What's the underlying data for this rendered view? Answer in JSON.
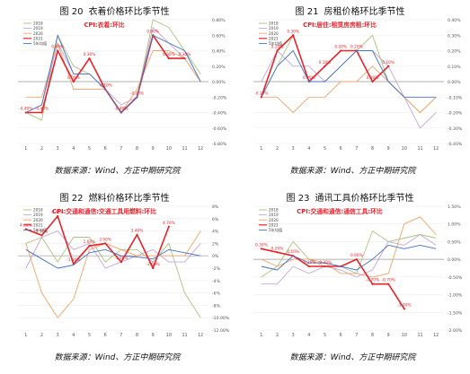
{
  "figures": [
    {
      "num": "图 20",
      "title": "衣着价格环比季节性",
      "subtitle": "CPI:衣着:环比",
      "source": "数据来源：Wind、方正中期研究院",
      "chart_data": {
        "type": "line",
        "x": [
          1,
          2,
          3,
          4,
          5,
          6,
          7,
          8,
          9,
          10,
          11,
          12
        ],
        "ylim": [
          -0.8,
          0.8
        ],
        "yticks": [
          "0.80%",
          "0.60%",
          "0.40%",
          "0.20%",
          "0.00%",
          "-0.20%",
          "-0.40%",
          "-0.60%",
          "-0.80%"
        ],
        "series": [
          {
            "name": "2018",
            "color": "#a9c47f",
            "width": 0.9,
            "values": [
              -0.4,
              -0.5,
              0.6,
              0.2,
              0.1,
              -0.1,
              -0.4,
              -0.2,
              0.8,
              0.7,
              0.4,
              0.1
            ]
          },
          {
            "name": "2019",
            "color": "#c6a5d9",
            "width": 0.9,
            "values": [
              -0.4,
              -0.3,
              0.5,
              0.1,
              0.1,
              -0.1,
              -0.3,
              -0.2,
              0.7,
              0.5,
              0.3,
              0.0
            ]
          },
          {
            "name": "2020",
            "color": "#f2a36a",
            "width": 0.9,
            "values": [
              -0.2,
              -0.2,
              0.5,
              -0.1,
              -0.1,
              -0.1,
              -0.4,
              -0.1,
              0.4,
              0.4,
              0.3,
              0.0
            ]
          },
          {
            "name": "2021",
            "color": "#e8232a",
            "width": 1.6,
            "values": [
              -0.4,
              -0.4,
              0.4,
              0.0,
              0.3,
              -0.1,
              -0.4,
              -0.2,
              0.6,
              0.3,
              0.3,
              null
            ]
          },
          {
            "name": "5年均值",
            "color": "#4472c4",
            "width": 0.9,
            "values": [
              -0.4,
              -0.3,
              0.6,
              0.1,
              0.1,
              -0.1,
              -0.4,
              -0.2,
              0.6,
              0.5,
              0.4,
              0.0
            ]
          }
        ],
        "labels": [
          {
            "x": 1,
            "y": -0.4,
            "text": "-0.40%"
          },
          {
            "x": 2,
            "y": -0.4,
            "text": "-0.40%"
          },
          {
            "x": 3,
            "y": 0.4,
            "text": "0.40%"
          },
          {
            "x": 4,
            "y": 0.0,
            "text": "0.00%"
          },
          {
            "x": 5,
            "y": 0.3,
            "text": "0.30%"
          },
          {
            "x": 6,
            "y": -0.1,
            "text": "-0.10%"
          },
          {
            "x": 7,
            "y": -0.4,
            "text": "-0.40%"
          },
          {
            "x": 8,
            "y": -0.2,
            "text": "-0.20%"
          },
          {
            "x": 9,
            "y": 0.6,
            "text": "0.60%"
          },
          {
            "x": 10,
            "y": 0.3,
            "text": "0.30%"
          },
          {
            "x": 11,
            "y": 0.3,
            "text": "0.30%"
          }
        ]
      }
    },
    {
      "num": "图 21",
      "title": "房租价格环比季节性",
      "subtitle": "CPI:居住:租赁房房租:环比",
      "source": "数据来源：Wind、方正中期研究院",
      "chart_data": {
        "type": "line",
        "x": [
          1,
          2,
          3,
          4,
          5,
          6,
          7,
          8,
          9,
          10,
          11,
          12
        ],
        "ylim": [
          -0.4,
          0.4
        ],
        "yticks": [
          "0.40%",
          "0.30%",
          "0.20%",
          "0.10%",
          "0.00%",
          "-0.10%",
          "-0.20%",
          "-0.30%",
          "-0.40%"
        ],
        "series": [
          {
            "name": "2018",
            "color": "#a9c47f",
            "width": 0.9,
            "values": [
              -0.1,
              0.1,
              0.3,
              0.0,
              0.1,
              0.2,
              0.2,
              0.3,
              0.0,
              -0.1,
              -0.2,
              -0.1
            ]
          },
          {
            "name": "2019",
            "color": "#c6a5d9",
            "width": 0.9,
            "values": [
              0.0,
              0.2,
              0.1,
              0.1,
              0.0,
              0.1,
              0.2,
              0.2,
              0.1,
              -0.1,
              -0.3,
              -0.2
            ]
          },
          {
            "name": "2020",
            "color": "#f2a36a",
            "width": 0.9,
            "values": [
              -0.1,
              -0.1,
              -0.2,
              -0.1,
              -0.1,
              0.0,
              0.0,
              0.1,
              0.0,
              -0.1,
              -0.2,
              -0.1
            ]
          },
          {
            "name": "2021",
            "color": "#e8232a",
            "width": 1.6,
            "values": [
              -0.1,
              0.2,
              0.3,
              0.0,
              0.1,
              0.2,
              0.2,
              0.0,
              0.1,
              null,
              null,
              null
            ]
          },
          {
            "name": "5年均值",
            "color": "#4472c4",
            "width": 0.9,
            "values": [
              -0.1,
              0.1,
              0.2,
              0.0,
              0.0,
              0.1,
              0.2,
              0.2,
              0.0,
              -0.1,
              -0.1,
              -0.1
            ]
          }
        ],
        "labels": [
          {
            "x": 1,
            "y": -0.1,
            "text": "-0.10%"
          },
          {
            "x": 2,
            "y": 0.2,
            "text": "0.20%"
          },
          {
            "x": 3,
            "y": 0.3,
            "text": "0.30%"
          },
          {
            "x": 4,
            "y": 0.0,
            "text": "0.00%"
          },
          {
            "x": 5,
            "y": 0.1,
            "text": "0.10%"
          },
          {
            "x": 6,
            "y": 0.2,
            "text": "0.20%"
          },
          {
            "x": 7,
            "y": 0.2,
            "text": "0.20%"
          },
          {
            "x": 8,
            "y": 0.0,
            "text": "0.00%"
          },
          {
            "x": 9,
            "y": 0.1,
            "text": "0.10%"
          }
        ]
      }
    },
    {
      "num": "图 22",
      "title": "燃料价格环比季节性",
      "subtitle": "CPI:交通和通信:交通工具用燃料:环比",
      "source": "数据来源：Wind、方正中期研究院",
      "chart_data": {
        "type": "line",
        "x": [
          1,
          2,
          3,
          4,
          5,
          6,
          7,
          8,
          9,
          10,
          11,
          12
        ],
        "ylim": [
          -12,
          8
        ],
        "yticks": [
          "8%",
          "6%",
          "4%",
          "2%",
          "0%",
          "-2%",
          "-4%",
          "-6%",
          "-8%",
          "-10.00%",
          "-12.00%"
        ],
        "series": [
          {
            "name": "2018",
            "color": "#a9c47f",
            "width": 0.9,
            "values": [
              2.0,
              3.0,
              -1.0,
              3.0,
              3.0,
              -1.0,
              1.0,
              1.0,
              -1.0,
              2.0,
              -6.0,
              -10.0
            ]
          },
          {
            "name": "2019",
            "color": "#c6a5d9",
            "width": 0.9,
            "values": [
              -2.0,
              3.0,
              4.0,
              1.0,
              2.0,
              -2.0,
              -1.0,
              0.0,
              1.0,
              -1.0,
              -1.0,
              2.0
            ]
          },
          {
            "name": "2020",
            "color": "#f2a36a",
            "width": 0.9,
            "values": [
              2.0,
              -6.0,
              -10.0,
              -7.0,
              1.0,
              2.0,
              1.0,
              0.0,
              0.0,
              0.0,
              0.0,
              4.0
            ]
          },
          {
            "name": "2021",
            "color": "#e8232a",
            "width": 1.6,
            "values": [
              4.3,
              3.3,
              6.4,
              -1.3,
              1.6,
              2.0,
              -1.0,
              3.4,
              -2.0,
              4.7,
              null,
              null
            ]
          },
          {
            "name": "5年均值",
            "color": "#4472c4",
            "width": 0.9,
            "values": [
              1.0,
              -0.5,
              -2.0,
              -1.5,
              0.5,
              1.0,
              0.0,
              -0.2,
              -0.5,
              1.0,
              0.5,
              0.0
            ]
          }
        ],
        "labels": [
          {
            "x": 1,
            "y": 4.3,
            "text": "4.30%"
          },
          {
            "x": 2,
            "y": 3.3,
            "text": "3.30%"
          },
          {
            "x": 3,
            "y": 6.4,
            "text": "6.40%"
          },
          {
            "x": 4,
            "y": -1.3,
            "text": "-1.30%"
          },
          {
            "x": 5,
            "y": 1.6,
            "text": "1.60%"
          },
          {
            "x": 6,
            "y": 2.0,
            "text": "2.00%"
          },
          {
            "x": 7,
            "y": -1.0,
            "text": "-1.00%"
          },
          {
            "x": 8,
            "y": 3.4,
            "text": "3.40%"
          },
          {
            "x": 9,
            "y": -2.0,
            "text": "-2.00%"
          },
          {
            "x": 10,
            "y": 4.7,
            "text": "4.70%"
          }
        ]
      }
    },
    {
      "num": "图 23",
      "title": "通讯工具价格环比季节性",
      "subtitle": "CPI:交通和通信:通信工具:环比",
      "source": "数据来源：Wind、方正中期研究院",
      "chart_data": {
        "type": "line",
        "x": [
          1,
          2,
          3,
          4,
          5,
          6,
          7,
          8,
          9,
          10,
          11,
          12
        ],
        "ylim": [
          -2.0,
          1.5
        ],
        "yticks": [
          "1.50%",
          "1.00%",
          "0.50%",
          "0.00%",
          "-0.50%",
          "-1.00%",
          "-1.50%",
          "-2.00%"
        ],
        "series": [
          {
            "name": "2018",
            "color": "#a9c47f",
            "width": 0.9,
            "values": [
              -0.5,
              -0.2,
              0.5,
              0.0,
              -0.2,
              -0.2,
              -0.4,
              0.8,
              0.5,
              0.6,
              0.7,
              0.6
            ]
          },
          {
            "name": "2019",
            "color": "#c6a5d9",
            "width": 0.9,
            "values": [
              -0.7,
              -0.7,
              -0.2,
              -0.4,
              -0.2,
              -0.3,
              -0.5,
              -0.3,
              0.5,
              0.4,
              0.7,
              0.4
            ]
          },
          {
            "name": "2020",
            "color": "#f2a36a",
            "width": 0.9,
            "values": [
              0.0,
              -0.2,
              0.0,
              0.0,
              -0.1,
              -0.4,
              -0.4,
              -0.5,
              -0.4,
              1.0,
              1.2,
              0.7
            ]
          },
          {
            "name": "2021",
            "color": "#e8232a",
            "width": 1.6,
            "values": [
              0.3,
              0.2,
              0.1,
              -0.2,
              -0.2,
              -0.2,
              0.0,
              -0.7,
              -0.7,
              -1.4,
              null,
              null
            ]
          },
          {
            "name": "5年均值",
            "color": "#4472c4",
            "width": 0.9,
            "values": [
              -0.2,
              -0.3,
              0.1,
              -0.1,
              -0.1,
              -0.2,
              -0.3,
              0.0,
              0.4,
              0.3,
              0.4,
              0.3
            ]
          }
        ],
        "labels": [
          {
            "x": 1,
            "y": 0.3,
            "text": "0.30%"
          },
          {
            "x": 2,
            "y": 0.2,
            "text": "0.20%"
          },
          {
            "x": 3,
            "y": 0.1,
            "text": "0.10%"
          },
          {
            "x": 4,
            "y": -0.2,
            "text": "-0.20%"
          },
          {
            "x": 5,
            "y": -0.2,
            "text": "-0.20%"
          },
          {
            "x": 7,
            "y": 0.0,
            "text": "0.00%"
          },
          {
            "x": 8,
            "y": -0.7,
            "text": "-0.70%"
          },
          {
            "x": 9,
            "y": -0.7,
            "text": "-0.70%"
          },
          {
            "x": 10,
            "y": -1.4,
            "text": "-1.40%"
          }
        ]
      }
    }
  ]
}
